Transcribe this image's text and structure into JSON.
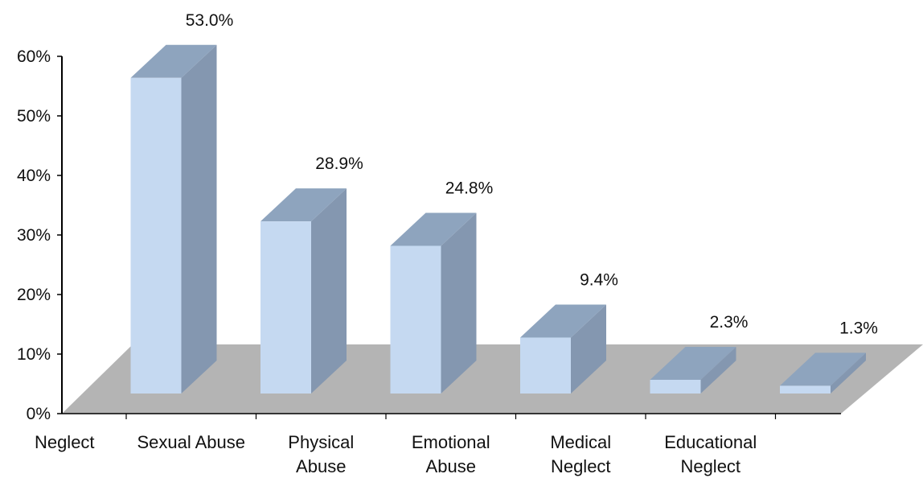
{
  "chart_data": {
    "type": "bar",
    "title": "",
    "xlabel": "",
    "ylabel": "",
    "ylim": [
      0,
      0.6
    ],
    "yticks": [
      "0%",
      "10%",
      "20%",
      "30%",
      "40%",
      "50%",
      "60%"
    ],
    "categories": [
      [
        "Neglect"
      ],
      [
        "Sexual Abuse"
      ],
      [
        "Physical",
        "Abuse"
      ],
      [
        "Emotional",
        "Abuse"
      ],
      [
        "Medical",
        "Neglect"
      ],
      [
        "Educational",
        "Neglect"
      ]
    ],
    "values": [
      0.53,
      0.289,
      0.248,
      0.094,
      0.023,
      0.013
    ],
    "data_labels": [
      "53.0%",
      "28.9%",
      "24.8%",
      "9.4%",
      "2.3%",
      "1.3%"
    ],
    "style": "3d-column",
    "grid": false,
    "legend": "none",
    "colors": {
      "bar_front": "#c5d9f1",
      "bar_side": "#8497b0",
      "bar_top": "#8ea4be",
      "floor": "#b4b4b4",
      "axis": "#000000"
    }
  }
}
